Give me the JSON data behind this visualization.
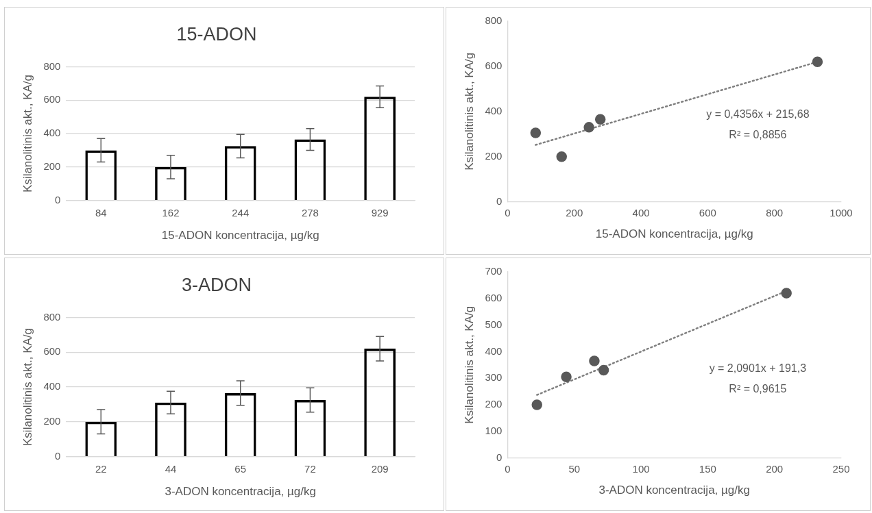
{
  "chart_data": [
    {
      "type": "bar",
      "title": "15-ADON",
      "xlabel": "15-ADON koncentracija, µg/kg",
      "ylabel": "Ksilanolitinis akt., KA/g",
      "categories": [
        "84",
        "162",
        "244",
        "278",
        "929"
      ],
      "values": [
        300,
        200,
        325,
        365,
        620
      ],
      "errors": [
        70,
        70,
        70,
        65,
        65
      ],
      "color": "#000000",
      "ylim": [
        0,
        800
      ],
      "yticks": [
        0,
        200,
        400,
        600,
        800
      ],
      "grid": "y",
      "legend": false
    },
    {
      "type": "scatter",
      "xlabel": "15-ADON koncentracija, µg/kg",
      "ylabel": "Ksilanolitinis akt., KA/g",
      "x": [
        84,
        162,
        244,
        278,
        929
      ],
      "series": [
        {
          "type": "scatter",
          "color": "#595959",
          "values": [
            305,
            200,
            330,
            365,
            620
          ]
        },
        {
          "type": "line",
          "color": "#7f7f7f",
          "x": [
            84,
            929
          ],
          "values": [
            252,
            620
          ],
          "line_style": "dotted",
          "marker": "none"
        }
      ],
      "marker": "circle",
      "xlim": [
        0,
        1000
      ],
      "xticks": [
        0,
        200,
        400,
        600,
        800,
        1000
      ],
      "ylim": [
        0,
        800
      ],
      "yticks": [
        0,
        200,
        400,
        600,
        800
      ],
      "grid": false,
      "legend": false,
      "annotations": [
        "y = 0,4356x + 215,68",
        "R² = 0,8856"
      ]
    },
    {
      "type": "bar",
      "title": "3-ADON",
      "xlabel": "3-ADON koncentracija, µg/kg",
      "ylabel": "Ksilanolitinis akt., KA/g",
      "categories": [
        "22",
        "44",
        "65",
        "72",
        "209"
      ],
      "values": [
        200,
        310,
        365,
        325,
        620
      ],
      "errors": [
        70,
        65,
        70,
        70,
        70
      ],
      "color": "#000000",
      "ylim": [
        0,
        800
      ],
      "yticks": [
        0,
        200,
        400,
        600,
        800
      ],
      "grid": "y",
      "legend": false
    },
    {
      "type": "scatter",
      "xlabel": "3-ADON koncentracija, µg/kg",
      "ylabel": "Ksilanolitinis akt., KA/g",
      "x": [
        22,
        44,
        65,
        72,
        209
      ],
      "series": [
        {
          "type": "scatter",
          "color": "#595959",
          "values": [
            200,
            305,
            365,
            330,
            620
          ]
        },
        {
          "type": "line",
          "color": "#7f7f7f",
          "x": [
            22,
            209
          ],
          "values": [
            237,
            628
          ],
          "line_style": "dotted",
          "marker": "none"
        }
      ],
      "marker": "circle",
      "xlim": [
        0,
        250
      ],
      "xticks": [
        0,
        50,
        100,
        150,
        200,
        250
      ],
      "ylim": [
        0,
        700
      ],
      "yticks": [
        0,
        100,
        200,
        300,
        400,
        500,
        600,
        700
      ],
      "grid": false,
      "legend": false,
      "annotations": [
        "y = 2,0901x + 191,3",
        "R² = 0,9615"
      ]
    }
  ]
}
